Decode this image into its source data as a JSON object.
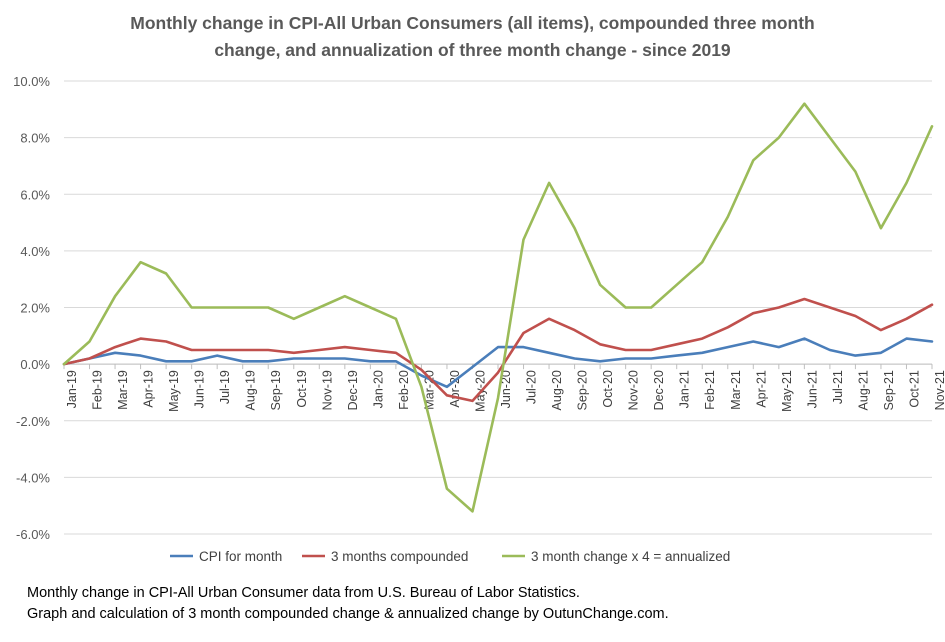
{
  "chart_data": {
    "type": "line",
    "title_lines": [
      "Monthly change in CPI-All Urban Consumers (all items), compounded three month",
      "change, and annualization  of three month change - since 2019"
    ],
    "xlabel": "",
    "ylabel": "",
    "ylim": [
      -6,
      10
    ],
    "yticks": [
      "-6.0%",
      "-4.0%",
      "-2.0%",
      "0.0%",
      "2.0%",
      "4.0%",
      "6.0%",
      "8.0%",
      "10.0%"
    ],
    "ytick_values": [
      -6,
      -4,
      -2,
      0,
      2,
      4,
      6,
      8,
      10
    ],
    "grid": true,
    "legend_position": "bottom",
    "categories": [
      "Jan-19",
      "Feb-19",
      "Mar-19",
      "Apr-19",
      "May-19",
      "Jun-19",
      "Jul-19",
      "Aug-19",
      "Sep-19",
      "Oct-19",
      "Nov-19",
      "Dec-19",
      "Jan-20",
      "Feb-20",
      "Mar-20",
      "Apr-20",
      "May-20",
      "Jun-20",
      "Jul-20",
      "Aug-20",
      "Sep-20",
      "Oct-20",
      "Nov-20",
      "Dec-20",
      "Jan-21",
      "Feb-21",
      "Mar-21",
      "Apr-21",
      "May-21",
      "Jun-21",
      "Jul-21",
      "Aug-21",
      "Sep-21",
      "Oct-21",
      "Nov-21"
    ],
    "series": [
      {
        "name": "CPI for month",
        "color": "#4a7eba",
        "values": [
          0.0,
          0.2,
          0.4,
          0.3,
          0.1,
          0.1,
          0.3,
          0.1,
          0.1,
          0.2,
          0.2,
          0.2,
          0.1,
          0.1,
          -0.4,
          -0.8,
          -0.1,
          0.6,
          0.6,
          0.4,
          0.2,
          0.1,
          0.2,
          0.2,
          0.3,
          0.4,
          0.6,
          0.8,
          0.6,
          0.9,
          0.5,
          0.3,
          0.4,
          0.9,
          0.8
        ]
      },
      {
        "name": "3 months compounded",
        "color": "#c0504d",
        "values": [
          0.0,
          0.2,
          0.6,
          0.9,
          0.8,
          0.5,
          0.5,
          0.5,
          0.5,
          0.4,
          0.5,
          0.6,
          0.5,
          0.4,
          -0.2,
          -1.1,
          -1.3,
          -0.3,
          1.1,
          1.6,
          1.2,
          0.7,
          0.5,
          0.5,
          0.7,
          0.9,
          1.3,
          1.8,
          2.0,
          2.3,
          2.0,
          1.7,
          1.2,
          1.6,
          2.1
        ]
      },
      {
        "name": "3 month change x 4 = annualized",
        "color": "#9bbb59",
        "values": [
          0.0,
          0.8,
          2.4,
          3.6,
          3.2,
          2.0,
          2.0,
          2.0,
          2.0,
          1.6,
          2.0,
          2.4,
          2.0,
          1.6,
          -0.8,
          -4.4,
          -5.2,
          -1.2,
          4.4,
          6.4,
          4.8,
          2.8,
          2.0,
          2.0,
          2.8,
          3.6,
          5.2,
          7.2,
          8.0,
          9.2,
          8.0,
          6.8,
          4.8,
          6.4,
          8.4
        ]
      }
    ]
  },
  "footnote": {
    "line1": "Monthly change in CPI-All Urban Consumer data from U.S. Bureau of Labor Statistics.",
    "line2": "Graph and calculation of 3 month  compounded  change & annualized change by OutunChange.com."
  }
}
